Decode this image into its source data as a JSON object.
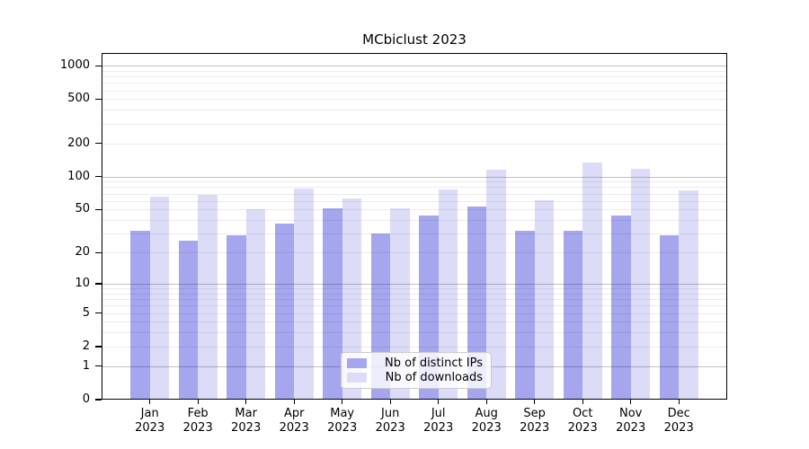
{
  "chart_data": {
    "type": "bar",
    "title": "MCbiclust 2023",
    "categories": [
      "Jan",
      "Feb",
      "Mar",
      "Apr",
      "May",
      "Jun",
      "Jul",
      "Aug",
      "Sep",
      "Oct",
      "Nov",
      "Dec"
    ],
    "year_label": "2023",
    "series": [
      {
        "name": "Nb of distinct IPs",
        "color": "#a6a6ee",
        "values": [
          32,
          26,
          29,
          37,
          51,
          30,
          44,
          53,
          32,
          32,
          44,
          29
        ]
      },
      {
        "name": "Nb of downloads",
        "color": "#dcdcf8",
        "values": [
          66,
          68,
          50,
          77,
          63,
          51,
          76,
          115,
          61,
          134,
          117,
          75
        ]
      }
    ],
    "y_axis": {
      "scale": "log1p",
      "ticks": [
        1000,
        500,
        200,
        100,
        50,
        20,
        10,
        5,
        2,
        1,
        0
      ],
      "top_value": 1300,
      "major_gridlines": [
        1,
        10,
        100,
        1000
      ]
    },
    "legend_position": "bottom-center",
    "grid": true
  }
}
